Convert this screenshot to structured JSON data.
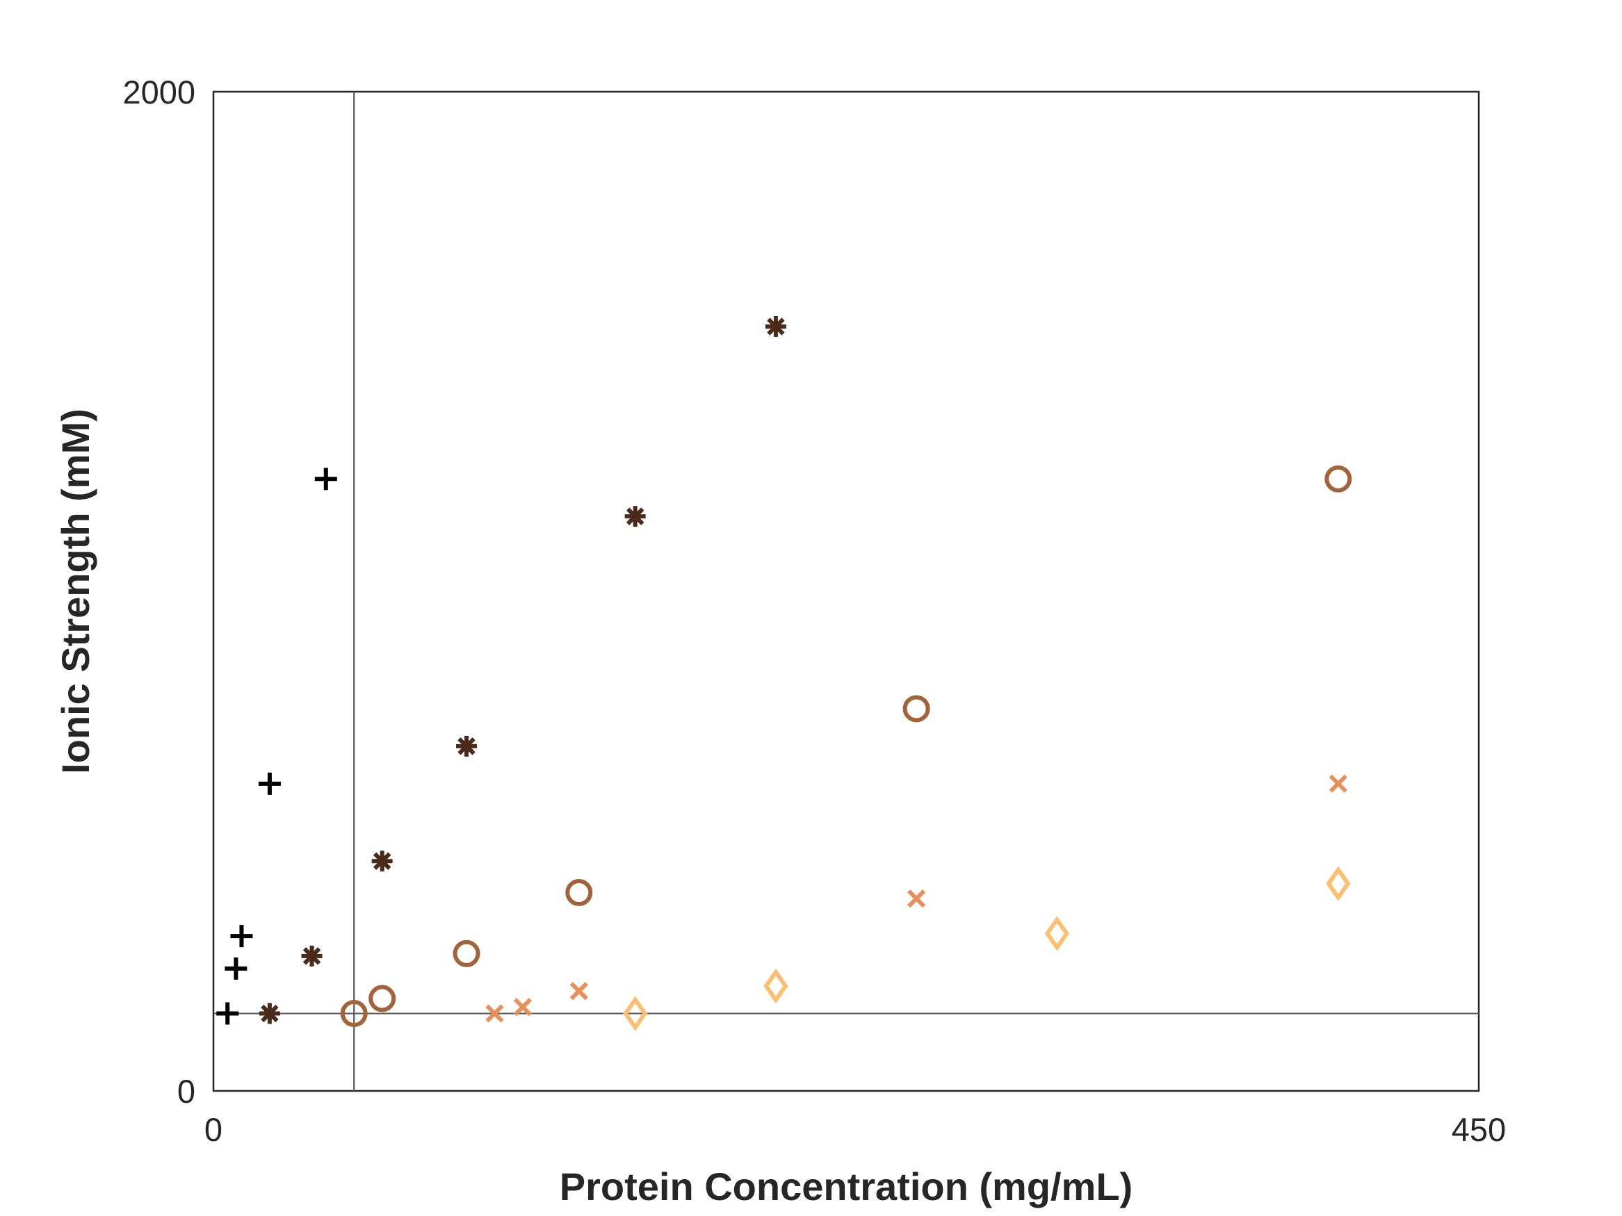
{
  "chart_data": {
    "type": "scatter",
    "title": "",
    "xlabel": "Protein Concentration (mg/mL)",
    "ylabel": "Ionic Strength (mM)",
    "xlim": [
      0,
      450
    ],
    "ylim": [
      0,
      2000
    ],
    "x_ticks": [
      "0",
      "450"
    ],
    "y_ticks": [
      "0",
      "2000"
    ],
    "grid": false,
    "legend": "none",
    "reference_lines": {
      "x": 50,
      "y": 155
    },
    "series": [
      {
        "marker": "plus",
        "color": "#000000",
        "points": [
          [
            5,
            155
          ],
          [
            8,
            245
          ],
          [
            10,
            310
          ],
          [
            20,
            615
          ],
          [
            40,
            1225
          ]
        ]
      },
      {
        "marker": "asterisk",
        "color": "#4a2a1b",
        "points": [
          [
            20,
            155
          ],
          [
            35,
            270
          ],
          [
            60,
            460
          ],
          [
            90,
            690
          ],
          [
            150,
            1150
          ],
          [
            200,
            1530
          ]
        ]
      },
      {
        "marker": "circle",
        "color": "#a0633a",
        "points": [
          [
            50,
            155
          ],
          [
            60,
            185
          ],
          [
            90,
            275
          ],
          [
            130,
            397
          ],
          [
            250,
            765
          ],
          [
            400,
            1225
          ]
        ]
      },
      {
        "marker": "x",
        "color": "#e8905a",
        "points": [
          [
            100,
            155
          ],
          [
            110,
            168
          ],
          [
            130,
            200
          ],
          [
            250,
            385
          ],
          [
            400,
            615
          ]
        ]
      },
      {
        "marker": "diamond",
        "color": "#fbbf72",
        "points": [
          [
            150,
            155
          ],
          [
            200,
            210
          ],
          [
            300,
            315
          ],
          [
            400,
            415
          ]
        ]
      }
    ]
  }
}
